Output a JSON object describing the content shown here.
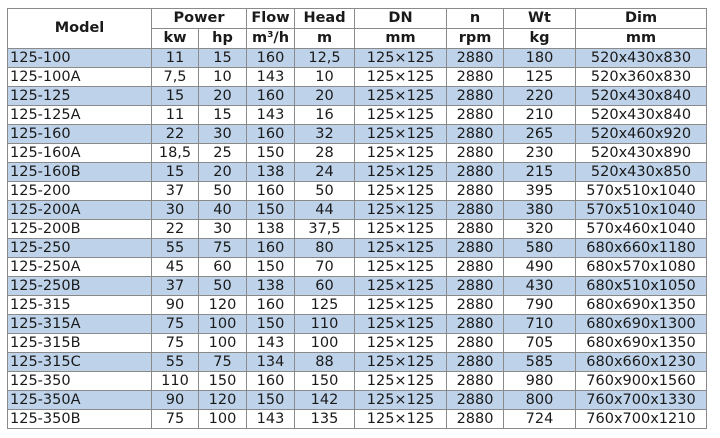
{
  "colors": {
    "row_alt": "#bed3ea",
    "border": "#8a8a8a"
  },
  "header": {
    "model": "Model",
    "power": "Power",
    "flow": "Flow",
    "head": "Head",
    "dn": "DN",
    "n": "n",
    "wt": "Wt",
    "dim": "Dim",
    "units": {
      "kw": "kw",
      "hp": "hp",
      "flow": "m³/h",
      "head": "m",
      "dn": "mm",
      "n": "rpm",
      "wt": "kg",
      "dim": "mm"
    }
  },
  "rows": [
    [
      "125-100",
      "11",
      "15",
      "160",
      "12,5",
      "125×125",
      "2880",
      "180",
      "520x430x830"
    ],
    [
      "125-100A",
      "7,5",
      "10",
      "143",
      "10",
      "125×125",
      "2880",
      "125",
      "520x360x830"
    ],
    [
      "125-125",
      "15",
      "20",
      "160",
      "20",
      "125×125",
      "2880",
      "220",
      "520x430x840"
    ],
    [
      "125-125A",
      "11",
      "15",
      "143",
      "16",
      "125×125",
      "2880",
      "210",
      "520x430x840"
    ],
    [
      "125-160",
      "22",
      "30",
      "160",
      "32",
      "125×125",
      "2880",
      "265",
      "520x460x920"
    ],
    [
      "125-160A",
      "18,5",
      "25",
      "150",
      "28",
      "125×125",
      "2880",
      "230",
      "520x430x890"
    ],
    [
      "125-160B",
      "15",
      "20",
      "138",
      "24",
      "125×125",
      "2880",
      "215",
      "520x430x850"
    ],
    [
      "125-200",
      "37",
      "50",
      "160",
      "50",
      "125×125",
      "2880",
      "395",
      "570x510x1040"
    ],
    [
      "125-200A",
      "30",
      "40",
      "150",
      "44",
      "125×125",
      "2880",
      "380",
      "570x510x1040"
    ],
    [
      "125-200B",
      "22",
      "30",
      "138",
      "37,5",
      "125×125",
      "2880",
      "320",
      "570x460x1040"
    ],
    [
      "125-250",
      "55",
      "75",
      "160",
      "80",
      "125×125",
      "2880",
      "580",
      "680x660x1180"
    ],
    [
      "125-250A",
      "45",
      "60",
      "150",
      "70",
      "125×125",
      "2880",
      "490",
      "680x570x1080"
    ],
    [
      "125-250B",
      "37",
      "50",
      "138",
      "60",
      "125×125",
      "2880",
      "430",
      "680x510x1050"
    ],
    [
      "125-315",
      "90",
      "120",
      "160",
      "125",
      "125×125",
      "2880",
      "790",
      "680x690x1350"
    ],
    [
      "125-315A",
      "75",
      "100",
      "150",
      "110",
      "125×125",
      "2880",
      "710",
      "680x690x1300"
    ],
    [
      "125-315B",
      "75",
      "100",
      "143",
      "100",
      "125×125",
      "2880",
      "705",
      "680x690x1350"
    ],
    [
      "125-315C",
      "55",
      "75",
      "134",
      "88",
      "125×125",
      "2880",
      "585",
      "680x660x1230"
    ],
    [
      "125-350",
      "110",
      "150",
      "160",
      "150",
      "125×125",
      "2880",
      "980",
      "760x900x1560"
    ],
    [
      "125-350A",
      "90",
      "120",
      "150",
      "142",
      "125×125",
      "2880",
      "800",
      "760x700x1330"
    ],
    [
      "125-350B",
      "75",
      "100",
      "143",
      "135",
      "125×125",
      "2880",
      "724",
      "760x700x1210"
    ]
  ]
}
